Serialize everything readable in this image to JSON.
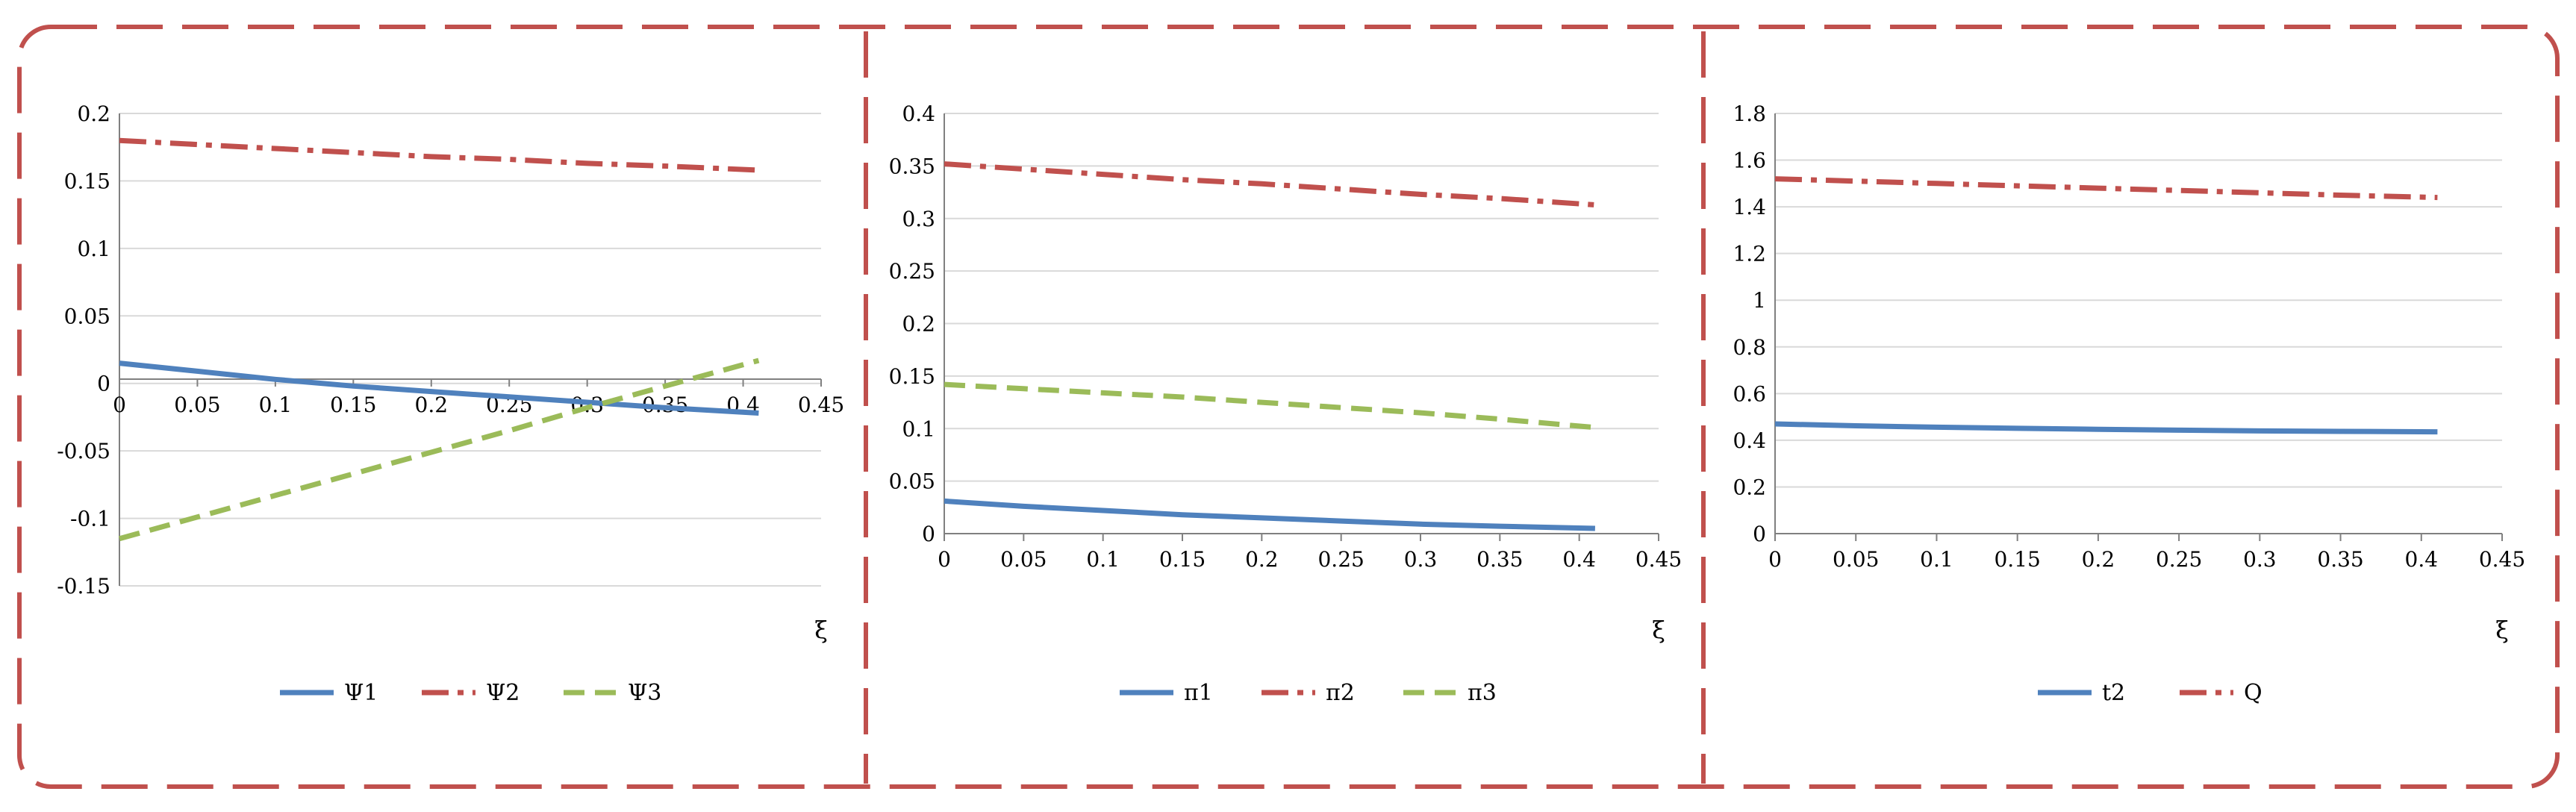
{
  "colors": {
    "frame": "#c0504d",
    "grid": "#d9d9d9",
    "axis": "#808080",
    "text": "#000000",
    "series_blue": "#4f81bd",
    "series_red": "#c0504d",
    "series_green": "#9bbb59"
  },
  "chart_data": [
    {
      "type": "line",
      "xlabel": "ξ",
      "ylabel": "",
      "xlim": [
        0,
        0.45
      ],
      "ylim": [
        -0.15,
        0.2
      ],
      "xticks": [
        "0",
        "0.05",
        "0.1",
        "0.15",
        "0.2",
        "0.25",
        "0.3",
        "0.35",
        "0.4",
        "0.45"
      ],
      "yticks": [
        "-0.15",
        "-0.1",
        "-0.05",
        "0",
        "0.05",
        "0.1",
        "0.15",
        "0.2"
      ],
      "legend": "bottom",
      "grid": true,
      "x": [
        0,
        0.05,
        0.1,
        0.15,
        0.2,
        0.25,
        0.3,
        0.35,
        0.41
      ],
      "series": [
        {
          "name": "Ψ1",
          "color": "#4f81bd",
          "dash": "solid",
          "values": [
            0.015,
            0.009,
            0.003,
            -0.002,
            -0.006,
            -0.01,
            -0.014,
            -0.018,
            -0.022
          ]
        },
        {
          "name": "Ψ2",
          "color": "#c0504d",
          "dash": "dashdot",
          "values": [
            0.18,
            0.177,
            0.174,
            0.171,
            0.168,
            0.166,
            0.163,
            0.161,
            0.158
          ]
        },
        {
          "name": "Ψ3",
          "color": "#9bbb59",
          "dash": "dash",
          "values": [
            -0.115,
            -0.099,
            -0.083,
            -0.067,
            -0.051,
            -0.035,
            -0.018,
            -0.002,
            0.017
          ]
        }
      ]
    },
    {
      "type": "line",
      "xlabel": "ξ",
      "ylabel": "",
      "xlim": [
        0,
        0.45
      ],
      "ylim": [
        0,
        0.4
      ],
      "xticks": [
        "0",
        "0.05",
        "0.1",
        "0.15",
        "0.2",
        "0.25",
        "0.3",
        "0.35",
        "0.4",
        "0.45"
      ],
      "yticks": [
        "0",
        "0.05",
        "0.1",
        "0.15",
        "0.2",
        "0.25",
        "0.3",
        "0.35",
        "0.4"
      ],
      "legend": "bottom",
      "grid": true,
      "x": [
        0,
        0.05,
        0.1,
        0.15,
        0.2,
        0.25,
        0.3,
        0.35,
        0.41
      ],
      "series": [
        {
          "name": "π1",
          "color": "#4f81bd",
          "dash": "solid",
          "values": [
            0.031,
            0.026,
            0.022,
            0.018,
            0.015,
            0.012,
            0.009,
            0.007,
            0.005
          ]
        },
        {
          "name": "π2",
          "color": "#c0504d",
          "dash": "dashdot",
          "values": [
            0.352,
            0.347,
            0.342,
            0.337,
            0.333,
            0.328,
            0.323,
            0.319,
            0.313
          ]
        },
        {
          "name": "π3",
          "color": "#9bbb59",
          "dash": "dash",
          "values": [
            0.142,
            0.138,
            0.134,
            0.13,
            0.125,
            0.12,
            0.115,
            0.109,
            0.101
          ]
        }
      ]
    },
    {
      "type": "line",
      "xlabel": "ξ",
      "ylabel": "",
      "xlim": [
        0,
        0.45
      ],
      "ylim": [
        0,
        1.8
      ],
      "xticks": [
        "0",
        "0.05",
        "0.1",
        "0.15",
        "0.2",
        "0.25",
        "0.3",
        "0.35",
        "0.4",
        "0.45"
      ],
      "yticks": [
        "0",
        "0.2",
        "0.4",
        "0.6",
        "0.8",
        "1",
        "1.2",
        "1.4",
        "1.6",
        "1.8"
      ],
      "legend": "bottom",
      "grid": true,
      "x": [
        0,
        0.05,
        0.1,
        0.15,
        0.2,
        0.25,
        0.3,
        0.35,
        0.41
      ],
      "series": [
        {
          "name": "t2",
          "color": "#4f81bd",
          "dash": "solid",
          "values": [
            0.47,
            0.462,
            0.456,
            0.451,
            0.447,
            0.443,
            0.44,
            0.438,
            0.436
          ]
        },
        {
          "name": "Q",
          "color": "#c0504d",
          "dash": "dashdot",
          "values": [
            1.52,
            1.51,
            1.5,
            1.49,
            1.48,
            1.47,
            1.46,
            1.45,
            1.44
          ]
        }
      ]
    }
  ]
}
